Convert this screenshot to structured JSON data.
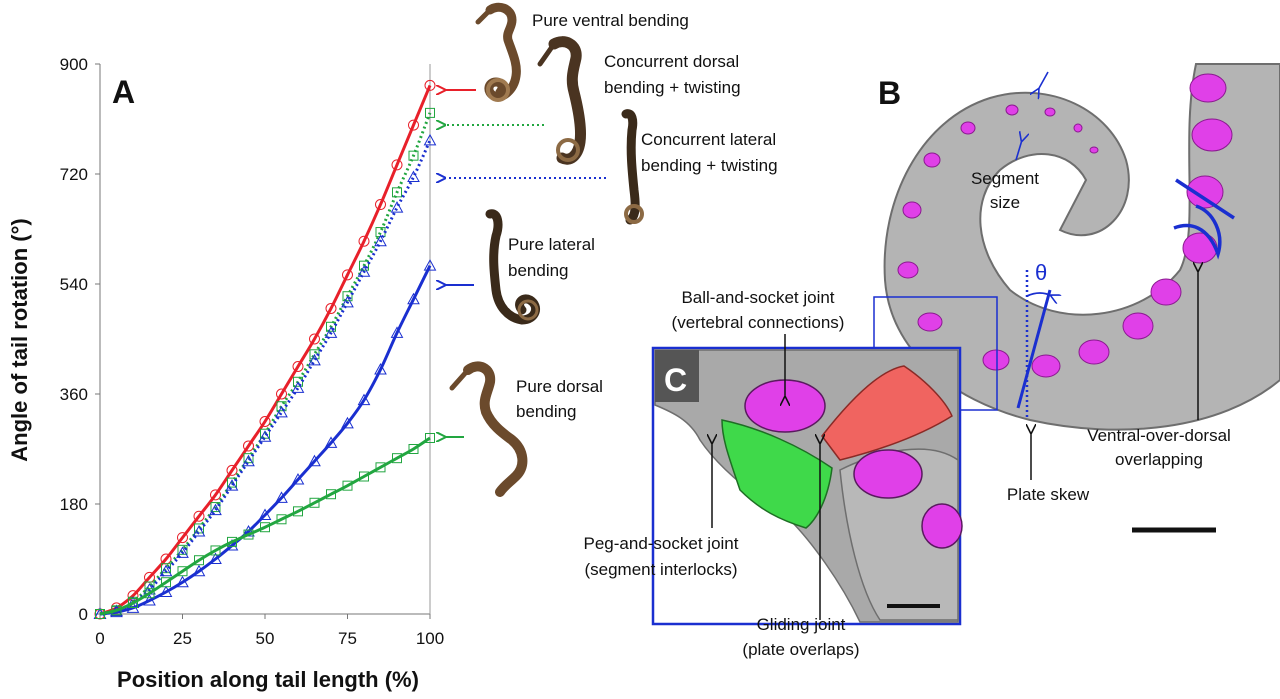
{
  "chart_data": {
    "type": "line",
    "panel_label": "A",
    "xlabel": "Position along tail length (%)",
    "ylabel": "Angle of tail rotation (°)",
    "xlim": [
      0,
      100
    ],
    "ylim": [
      0,
      900
    ],
    "xticks": [
      "0",
      "25",
      "50",
      "75",
      "100"
    ],
    "yticks": [
      "0",
      "180",
      "360",
      "540",
      "720",
      "900"
    ],
    "grid": false,
    "series": [
      {
        "key": "ventral",
        "color": "#e8202a",
        "marker": "circle",
        "style": "solid",
        "x": [
          0,
          5,
          10,
          15,
          20,
          25,
          30,
          35,
          40,
          45,
          50,
          55,
          60,
          65,
          70,
          75,
          80,
          85,
          90,
          95,
          100
        ],
        "values": [
          0,
          10,
          30,
          60,
          90,
          125,
          160,
          195,
          235,
          275,
          315,
          360,
          405,
          450,
          500,
          555,
          610,
          670,
          735,
          800,
          865
        ]
      },
      {
        "key": "dorsal_twist",
        "color": "#22a640",
        "marker": "square",
        "style": "dotted",
        "x": [
          0,
          5,
          10,
          15,
          20,
          25,
          30,
          35,
          40,
          45,
          50,
          55,
          60,
          65,
          70,
          75,
          80,
          85,
          90,
          95,
          100
        ],
        "values": [
          0,
          5,
          20,
          45,
          75,
          105,
          140,
          175,
          215,
          255,
          295,
          340,
          380,
          425,
          470,
          520,
          570,
          625,
          690,
          750,
          820
        ]
      },
      {
        "key": "lateral_twist",
        "color": "#1a2fd0",
        "marker": "triangle",
        "style": "dotted",
        "x": [
          0,
          5,
          10,
          15,
          20,
          25,
          30,
          35,
          40,
          45,
          50,
          55,
          60,
          65,
          70,
          75,
          80,
          85,
          90,
          95,
          100
        ],
        "values": [
          0,
          5,
          18,
          40,
          70,
          100,
          135,
          170,
          210,
          250,
          290,
          330,
          370,
          415,
          460,
          510,
          560,
          610,
          665,
          715,
          775
        ]
      },
      {
        "key": "lateral",
        "color": "#1a2fd0",
        "marker": "triangle",
        "style": "solid",
        "x": [
          0,
          5,
          10,
          15,
          20,
          25,
          30,
          35,
          40,
          45,
          50,
          55,
          60,
          65,
          70,
          75,
          80,
          85,
          90,
          95,
          100
        ],
        "values": [
          0,
          3,
          10,
          22,
          36,
          52,
          70,
          90,
          112,
          135,
          162,
          190,
          220,
          250,
          280,
          312,
          350,
          400,
          460,
          515,
          570
        ]
      },
      {
        "key": "dorsal",
        "color": "#22a640",
        "marker": "square",
        "style": "solid",
        "x": [
          0,
          5,
          10,
          15,
          20,
          25,
          30,
          35,
          40,
          45,
          50,
          55,
          60,
          65,
          70,
          75,
          80,
          85,
          90,
          95,
          100
        ],
        "values": [
          0,
          6,
          18,
          34,
          52,
          70,
          88,
          104,
          118,
          130,
          142,
          155,
          168,
          182,
          196,
          210,
          225,
          240,
          255,
          270,
          288
        ]
      }
    ],
    "annotations": [
      {
        "key": "ventral",
        "lines": [
          "Pure ventral bending"
        ]
      },
      {
        "key": "dorsal_twist",
        "lines": [
          "Concurrent dorsal",
          "bending + twisting"
        ]
      },
      {
        "key": "lateral_twist",
        "lines": [
          "Concurrent lateral",
          "bending + twisting"
        ]
      },
      {
        "key": "lateral",
        "lines": [
          "Pure lateral",
          "bending"
        ]
      },
      {
        "key": "dorsal",
        "lines": [
          "Pure dorsal",
          "bending"
        ]
      }
    ]
  },
  "panel_b": {
    "label": "B",
    "theta": "θ",
    "segment_size": [
      "Segment",
      "size"
    ],
    "plate_skew": "Plate skew",
    "ventral_over_dorsal": [
      "Ventral-over-dorsal",
      "overlapping"
    ]
  },
  "panel_c": {
    "label": "C",
    "ball_socket": [
      "Ball-and-socket joint",
      "(vertebral connections)"
    ],
    "peg_socket": [
      "Peg-and-socket joint",
      "(segment interlocks)"
    ],
    "gliding": [
      "Gliding joint",
      "(plate overlaps)"
    ]
  },
  "colors": {
    "red": "#e8202a",
    "green": "#22a640",
    "blue": "#1a2fd0",
    "magenta": "#e040e8",
    "bone_gray": "#b4b4b4",
    "frame_blue": "#1a2fd0"
  }
}
